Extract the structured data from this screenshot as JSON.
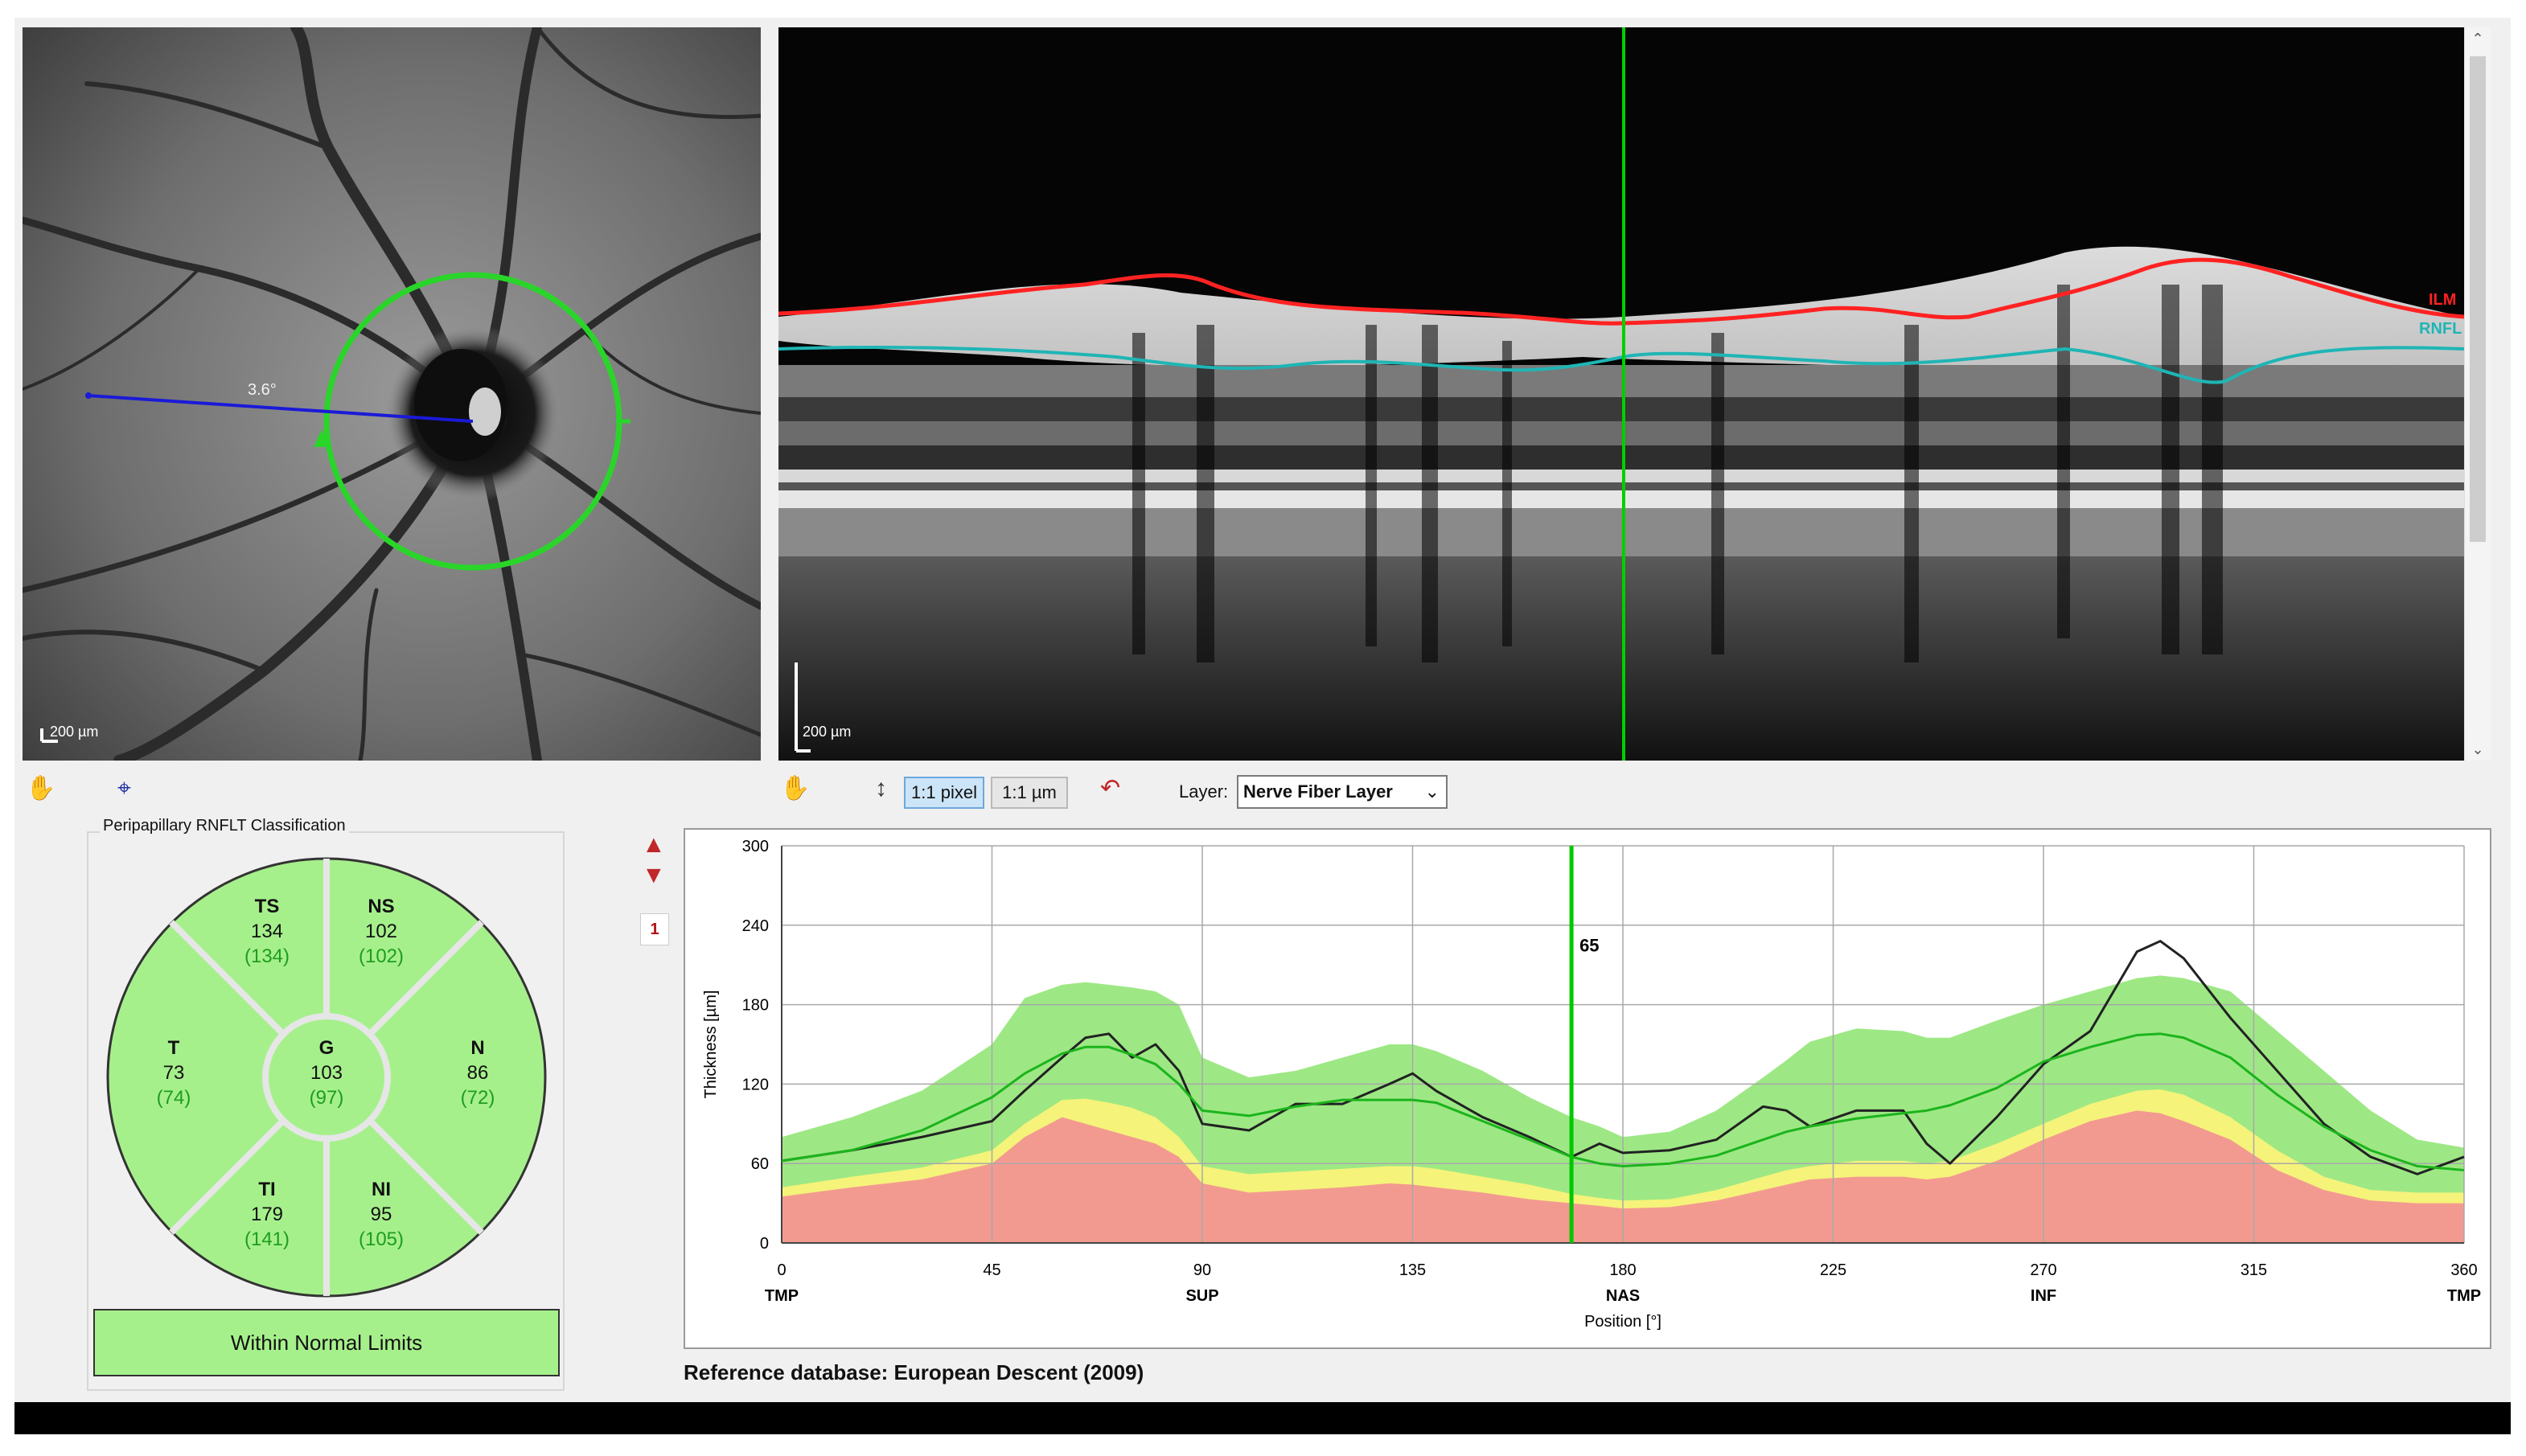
{
  "fundus": {
    "scalebar_label": "200 µm",
    "angle_label": "3.6°"
  },
  "bscan": {
    "scalebar_label": "200 µm",
    "ilm_label": "ILM",
    "rnfl_label": "RNFL",
    "ilm_color": "#ff1c1c",
    "rnfl_color": "#1fb5b5"
  },
  "toolbar": {
    "pixel_button": "1:1 pixel",
    "micron_button": "1:1 µm",
    "layer_label": "Layer:",
    "layer_value": "Nerve Fiber Layer",
    "icons": [
      "hand-icon",
      "cursor-icon",
      "height-icon",
      "reset-icon"
    ]
  },
  "classification": {
    "title": "Peripapillary RNFLT Classification",
    "sectors": [
      {
        "key": "TS",
        "value": "134",
        "ref": "(134)"
      },
      {
        "key": "NS",
        "value": "102",
        "ref": "(102)"
      },
      {
        "key": "T",
        "value": "73",
        "ref": "(74)"
      },
      {
        "key": "G",
        "value": "103",
        "ref": "(97)"
      },
      {
        "key": "N",
        "value": "86",
        "ref": "(72)"
      },
      {
        "key": "TI",
        "value": "179",
        "ref": "(141)"
      },
      {
        "key": "NI",
        "value": "95",
        "ref": "(105)"
      }
    ],
    "status": "Within Normal Limits",
    "status_color": "#a6f08c",
    "ref_color": "#1e9d1e"
  },
  "page_indicator": "1",
  "chart_data": {
    "type": "line",
    "ylabel": "Thickness [µm]",
    "xlabel": "Position [°]",
    "xlim": [
      0,
      360
    ],
    "ylim": [
      0,
      300
    ],
    "yticks": [
      0,
      60,
      120,
      180,
      240,
      300
    ],
    "xticks": [
      0,
      45,
      90,
      135,
      180,
      225,
      270,
      315,
      360
    ],
    "sector_labels": [
      {
        "x": 0,
        "label": "TMP"
      },
      {
        "x": 90,
        "label": "SUP"
      },
      {
        "x": 180,
        "label": "NAS"
      },
      {
        "x": 270,
        "label": "INF"
      },
      {
        "x": 360,
        "label": "TMP"
      }
    ],
    "cursor": {
      "x": 169,
      "label": "65"
    },
    "x": [
      0,
      15,
      30,
      45,
      52,
      60,
      65,
      70,
      75,
      80,
      85,
      90,
      100,
      110,
      120,
      130,
      135,
      140,
      150,
      160,
      169,
      175,
      180,
      190,
      200,
      210,
      215,
      220,
      230,
      240,
      245,
      250,
      260,
      270,
      280,
      290,
      295,
      300,
      310,
      320,
      330,
      340,
      350,
      360
    ],
    "series": [
      {
        "name": "Patient",
        "values": [
          62,
          70,
          80,
          92,
          115,
          140,
          155,
          158,
          140,
          150,
          130,
          90,
          85,
          105,
          105,
          120,
          128,
          115,
          95,
          80,
          65,
          75,
          68,
          70,
          78,
          103,
          100,
          88,
          100,
          100,
          75,
          60,
          95,
          135,
          160,
          220,
          228,
          215,
          170,
          130,
          90,
          65,
          52,
          65
        ]
      },
      {
        "name": "Mean",
        "values": [
          62,
          70,
          85,
          110,
          128,
          143,
          148,
          148,
          142,
          135,
          120,
          100,
          96,
          103,
          108,
          108,
          108,
          106,
          92,
          78,
          65,
          60,
          58,
          60,
          66,
          78,
          84,
          88,
          94,
          98,
          100,
          104,
          117,
          137,
          148,
          157,
          158,
          155,
          140,
          112,
          88,
          70,
          58,
          55
        ]
      }
    ],
    "bands": {
      "x": [
        0,
        15,
        30,
        45,
        52,
        60,
        65,
        70,
        75,
        80,
        85,
        90,
        100,
        110,
        120,
        130,
        135,
        140,
        150,
        160,
        169,
        175,
        180,
        190,
        200,
        210,
        215,
        220,
        230,
        240,
        245,
        250,
        260,
        270,
        280,
        290,
        295,
        300,
        310,
        320,
        330,
        340,
        350,
        360
      ],
      "normal_upper": [
        80,
        95,
        115,
        150,
        185,
        195,
        197,
        195,
        193,
        190,
        180,
        140,
        125,
        130,
        140,
        150,
        150,
        145,
        130,
        110,
        95,
        88,
        80,
        84,
        100,
        125,
        138,
        152,
        162,
        160,
        155,
        155,
        168,
        180,
        190,
        200,
        202,
        200,
        190,
        160,
        130,
        100,
        78,
        72
      ],
      "borderline_upper": [
        42,
        50,
        57,
        70,
        90,
        108,
        109,
        106,
        102,
        95,
        80,
        58,
        52,
        54,
        56,
        58,
        58,
        56,
        50,
        44,
        37,
        34,
        32,
        33,
        40,
        50,
        55,
        58,
        62,
        62,
        60,
        62,
        75,
        90,
        105,
        115,
        116,
        112,
        95,
        70,
        50,
        40,
        38,
        38
      ],
      "outside_upper": [
        35,
        42,
        48,
        60,
        80,
        95,
        90,
        85,
        80,
        75,
        65,
        45,
        38,
        40,
        42,
        45,
        44,
        42,
        38,
        33,
        30,
        28,
        26,
        27,
        32,
        40,
        44,
        48,
        50,
        50,
        48,
        50,
        62,
        78,
        92,
        100,
        98,
        92,
        78,
        55,
        40,
        32,
        30,
        30
      ],
      "colors": {
        "normal": "#9de884",
        "borderline": "#f5f37a",
        "outside": "#f39a90",
        "patient": "#222222",
        "mean": "#1cb41c",
        "cursor": "#00c800"
      }
    }
  },
  "reference_database": "Reference database: European Descent (2009)"
}
